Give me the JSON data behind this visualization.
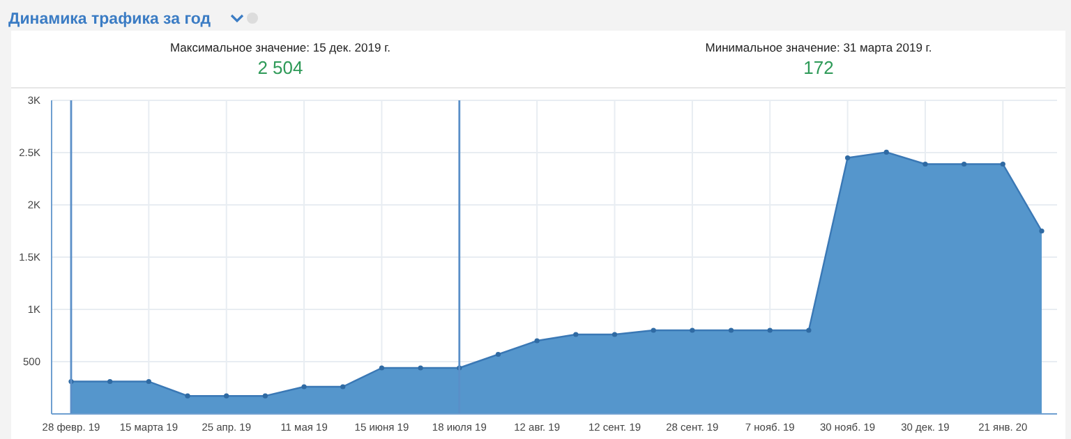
{
  "chart_data": {
    "type": "area",
    "title": "Динамика трафика за год",
    "annotations": [
      "Максимальное значение: 15 дек. 2019 г.",
      "2 504",
      "Минимальное значение: 31 марта 2019 г.",
      "172"
    ],
    "categories": [
      "28 февр. 19",
      null,
      "15 марта 19",
      null,
      "25 апр. 19",
      null,
      "11 мая 19",
      null,
      "15 июня 19",
      null,
      "18 июля 19",
      null,
      "12 авг. 19",
      null,
      "12 сент. 19",
      null,
      "28 сент. 19",
      null,
      "7 нояб. 19",
      null,
      "30 нояб. 19",
      null,
      "30 дек. 19",
      null,
      "21 янв. 20",
      null
    ],
    "series": [
      {
        "color": "#5596cc",
        "values": [
          310,
          310,
          310,
          172,
          172,
          172,
          260,
          260,
          440,
          440,
          440,
          570,
          700,
          760,
          760,
          800,
          800,
          800,
          800,
          800,
          2450,
          2504,
          2390,
          2390,
          2390,
          1750
        ]
      }
    ],
    "ylim": [
      0,
      3000
    ],
    "yticks": [
      {
        "value": 0,
        "label": null
      },
      {
        "value": 500,
        "label": "500"
      },
      {
        "value": 1000,
        "label": "1K"
      },
      {
        "value": 1500,
        "label": "1.5K"
      },
      {
        "value": 2000,
        "label": "2K"
      },
      {
        "value": 2500,
        "label": "2.5K"
      },
      {
        "value": 3000,
        "label": "3K"
      }
    ],
    "grid": true,
    "marker": "circle",
    "ref_lines": [
      {
        "axis": "x",
        "value": "28 февр. 19",
        "color": "#5a8fc8"
      },
      {
        "axis": "x",
        "value": "18 июля 19",
        "color": "#5a8fc8"
      }
    ]
  }
}
